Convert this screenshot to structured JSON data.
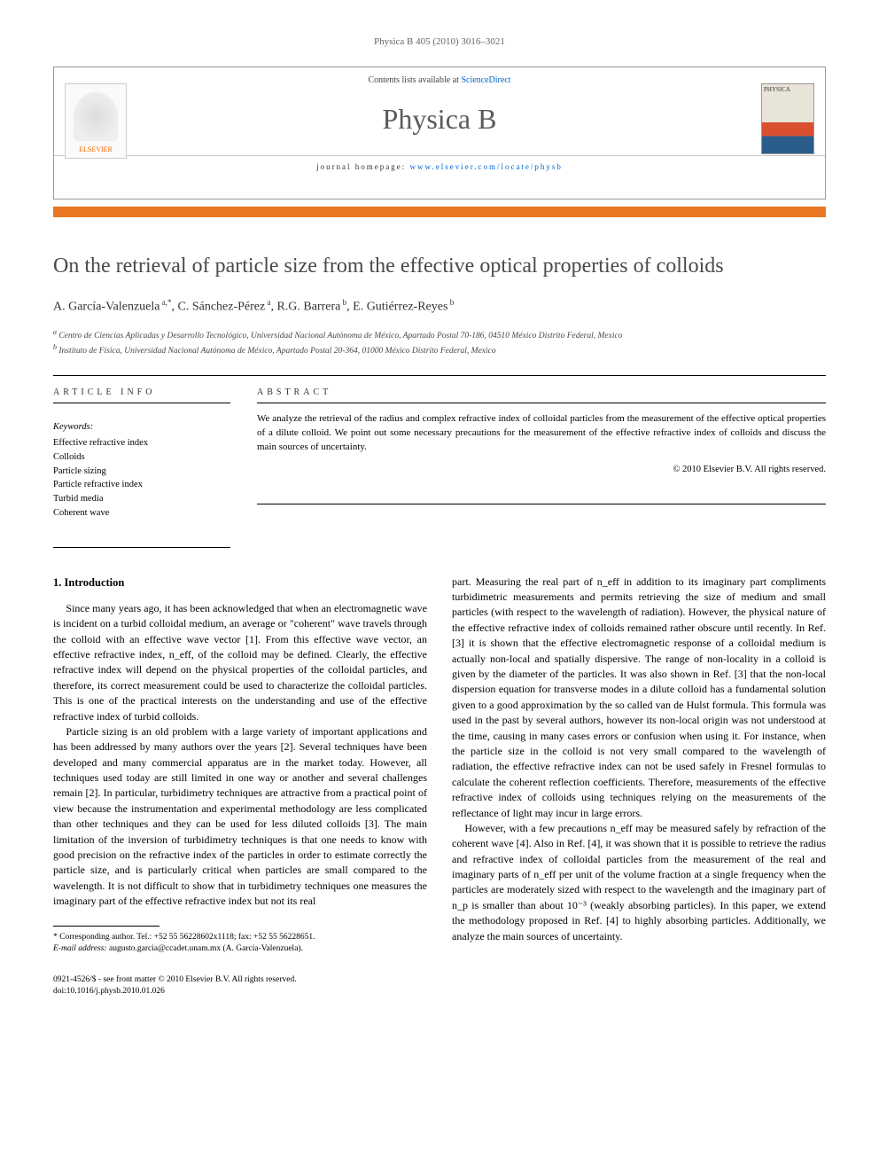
{
  "running_header": "Physica B 405 (2010) 3016–3021",
  "masthead": {
    "contents_line_prefix": "Contents lists available at ",
    "contents_link": "ScienceDirect",
    "journal_name": "Physica B",
    "homepage_prefix": "journal homepage: ",
    "homepage_link": "www.elsevier.com/locate/physb",
    "publisher_label": "ELSEVIER",
    "cover_label": "PHYSICA"
  },
  "colors": {
    "orange_bar": "#e87723",
    "link": "#0066cc",
    "title_gray": "#4a4a4a"
  },
  "title": "On the retrieval of particle size from the effective optical properties of colloids",
  "authors_html": "A. García-Valenzuela <sup>a,*</sup>, C. Sánchez-Pérez <sup>a</sup>, R.G. Barrera <sup>b</sup>, E. Gutiérrez-Reyes <sup>b</sup>",
  "affiliations": {
    "a": "Centro de Ciencias Aplicadas y Desarrollo Tecnológico, Universidad Nacional Autónoma de México, Apartado Postal 70-186, 04510 México Distrito Federal, Mexico",
    "b": "Instituto de Física, Universidad Nacional Autónoma de México, Apartado Postal 20-364, 01000 México Distrito Federal, Mexico"
  },
  "labels": {
    "article_info": "ARTICLE INFO",
    "abstract": "ABSTRACT",
    "keywords": "Keywords:"
  },
  "keywords": [
    "Effective refractive index",
    "Colloids",
    "Particle sizing",
    "Particle refractive index",
    "Turbid media",
    "Coherent wave"
  ],
  "abstract": "We analyze the retrieval of the radius and complex refractive index of colloidal particles from the measurement of the effective optical properties of a dilute colloid. We point out some necessary precautions for the measurement of the effective refractive index of colloids and discuss the main sources of uncertainty.",
  "copyright": "© 2010 Elsevier B.V. All rights reserved.",
  "section1_heading": "1. Introduction",
  "body": {
    "p1": "Since many years ago, it has been acknowledged that when an electromagnetic wave is incident on a turbid colloidal medium, an average or \"coherent\" wave travels through the colloid with an effective wave vector [1]. From this effective wave vector, an effective refractive index, n_eff, of the colloid may be defined. Clearly, the effective refractive index will depend on the physical properties of the colloidal particles, and therefore, its correct measurement could be used to characterize the colloidal particles. This is one of the practical interests on the understanding and use of the effective refractive index of turbid colloids.",
    "p2": "Particle sizing is an old problem with a large variety of important applications and has been addressed by many authors over the years [2]. Several techniques have been developed and many commercial apparatus are in the market today. However, all techniques used today are still limited in one way or another and several challenges remain [2]. In particular, turbidimetry techniques are attractive from a practical point of view because the instrumentation and experimental methodology are less complicated than other techniques and they can be used for less diluted colloids [3]. The main limitation of the inversion of turbidimetry techniques is that one needs to know with good precision on the refractive index of the particles in order to estimate correctly the particle size, and is particularly critical when particles are small compared to the wavelength. It is not difficult to show that in turbidimetry techniques one measures the imaginary part of the effective refractive index but not its real",
    "p3": "part. Measuring the real part of n_eff in addition to its imaginary part compliments turbidimetric measurements and permits retrieving the size of medium and small particles (with respect to the wavelength of radiation). However, the physical nature of the effective refractive index of colloids remained rather obscure until recently. In Ref. [3] it is shown that the effective electromagnetic response of a colloidal medium is actually non-local and spatially dispersive. The range of non-locality in a colloid is given by the diameter of the particles. It was also shown in Ref. [3] that the non-local dispersion equation for transverse modes in a dilute colloid has a fundamental solution given to a good approximation by the so called van de Hulst formula. This formula was used in the past by several authors, however its non-local origin was not understood at the time, causing in many cases errors or confusion when using it. For instance, when the particle size in the colloid is not very small compared to the wavelength of radiation, the effective refractive index can not be used safely in Fresnel formulas to calculate the coherent reflection coefficients. Therefore, measurements of the effective refractive index of colloids using techniques relying on the measurements of the reflectance of light may incur in large errors.",
    "p4": "However, with a few precautions n_eff may be measured safely by refraction of the coherent wave [4]. Also in Ref. [4], it was shown that it is possible to retrieve the radius and refractive index of colloidal particles from the measurement of the real and imaginary parts of n_eff per unit of the volume fraction at a single frequency when the particles are moderately sized with respect to the wavelength and the imaginary part of n_p is smaller than about 10⁻³ (weakly absorbing particles). In this paper, we extend the methodology proposed in Ref. [4] to highly absorbing particles. Additionally, we analyze the main sources of uncertainty."
  },
  "footnote": {
    "corr": "* Corresponding author. Tel.: +52 55 56228602x1118; fax: +52 55 56228651.",
    "email_label": "E-mail address:",
    "email": "augusto.garcia@ccadet.unam.mx (A. García-Valenzuela)."
  },
  "footer": {
    "line1": "0921-4526/$ - see front matter © 2010 Elsevier B.V. All rights reserved.",
    "line2": "doi:10.1016/j.physb.2010.01.026"
  }
}
